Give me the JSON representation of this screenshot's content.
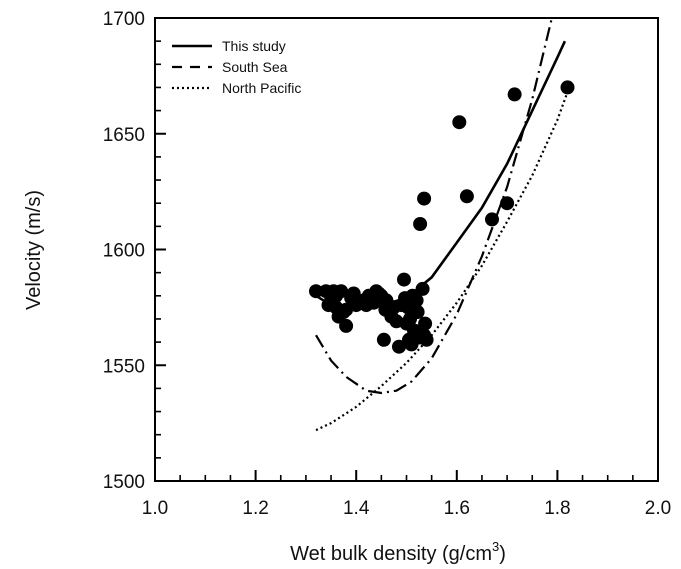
{
  "chart_data": {
    "type": "scatter",
    "xlabel": "Wet bulk density (g/cm",
    "xlabel_superscript": "3",
    "xlabel_suffix": ")",
    "ylabel": "Velocity (m/s)",
    "xlim": [
      1.0,
      2.0
    ],
    "ylim": [
      1500,
      1700
    ],
    "x_ticks": [
      1.0,
      1.2,
      1.4,
      1.6,
      1.8,
      2.0
    ],
    "x_tick_labels": [
      "1.0",
      "1.2",
      "1.4",
      "1.6",
      "1.8",
      "2.0"
    ],
    "y_ticks": [
      1500,
      1550,
      1600,
      1650,
      1700
    ],
    "y_tick_labels": [
      "1500",
      "1550",
      "1600",
      "1650",
      "1700"
    ],
    "grid": false,
    "legend_position": "top-left",
    "points": {
      "x": [
        1.32,
        1.34,
        1.345,
        1.355,
        1.36,
        1.365,
        1.37,
        1.375,
        1.38,
        1.39,
        1.4,
        1.41,
        1.42,
        1.43,
        1.44,
        1.445,
        1.45,
        1.455,
        1.46,
        1.47,
        1.475,
        1.48,
        1.485,
        1.49,
        1.495,
        1.5,
        1.505,
        1.51,
        1.515,
        1.52,
        1.525,
        1.53,
        1.535,
        1.54,
        1.38,
        1.36,
        1.35,
        1.395,
        1.415,
        1.425,
        1.435,
        1.458,
        1.468,
        1.497,
        1.503,
        1.507,
        1.512,
        1.522,
        1.532,
        1.537,
        1.527,
        1.535,
        1.605,
        1.62,
        1.67,
        1.7,
        1.715,
        1.82
      ],
      "y": [
        1582,
        1582,
        1576,
        1582,
        1575,
        1571,
        1582,
        1573,
        1567,
        1579,
        1576,
        1577,
        1576,
        1578,
        1582,
        1581,
        1580,
        1561,
        1578,
        1571,
        1575,
        1569,
        1558,
        1576,
        1587,
        1568,
        1561,
        1559,
        1565,
        1578,
        1562,
        1565,
        1563,
        1561,
        1574,
        1580,
        1578,
        1581,
        1578,
        1580,
        1577,
        1574,
        1573,
        1579,
        1575,
        1570,
        1580,
        1573,
        1583,
        1568,
        1611,
        1622,
        1655,
        1623,
        1613,
        1620,
        1667,
        1670
      ]
    },
    "series": [
      {
        "name": "This study",
        "style": "solid",
        "x": [
          1.32,
          1.35,
          1.4,
          1.45,
          1.5,
          1.55,
          1.6,
          1.65,
          1.7,
          1.75,
          1.8,
          1.815
        ],
        "y": [
          1580,
          1576,
          1575,
          1576,
          1579,
          1588,
          1603,
          1618,
          1637,
          1660,
          1683,
          1690
        ]
      },
      {
        "name": "South Sea",
        "style": "dash-dot",
        "x": [
          1.32,
          1.35,
          1.38,
          1.42,
          1.45,
          1.48,
          1.51,
          1.55,
          1.6,
          1.65,
          1.7,
          1.75,
          1.79
        ],
        "y": [
          1563,
          1552,
          1545,
          1539,
          1538,
          1539,
          1543,
          1553,
          1572,
          1597,
          1627,
          1665,
          1701
        ]
      },
      {
        "name": "North Pacific",
        "style": "dotted",
        "x": [
          1.32,
          1.35,
          1.4,
          1.45,
          1.5,
          1.55,
          1.6,
          1.65,
          1.7,
          1.75,
          1.8,
          1.82
        ],
        "y": [
          1522,
          1525,
          1532,
          1541,
          1551,
          1563,
          1577,
          1593,
          1612,
          1632,
          1656,
          1668
        ]
      }
    ],
    "colors": {
      "ink": "#000000",
      "background": "#ffffff"
    }
  }
}
